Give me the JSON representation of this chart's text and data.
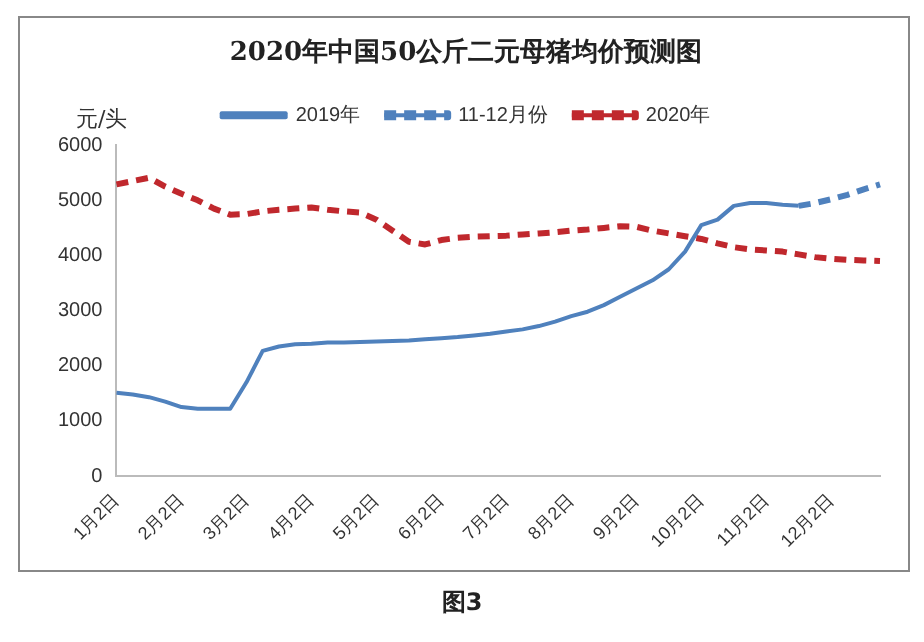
{
  "chart_data": {
    "type": "line",
    "title": "2020年中国50公斤二元母猪均价预测图",
    "ylabel": "元/头",
    "annotations": [
      "图3"
    ],
    "categories": [
      "1月2日",
      null,
      null,
      null,
      "2月2日",
      null,
      null,
      null,
      "3月2日",
      null,
      null,
      null,
      "4月2日",
      null,
      null,
      null,
      "5月2日",
      null,
      null,
      null,
      "6月2日",
      null,
      null,
      null,
      "7月2日",
      null,
      null,
      null,
      "8月2日",
      null,
      null,
      null,
      "9月2日",
      null,
      null,
      null,
      "10月2日",
      null,
      null,
      null,
      "11月2日",
      null,
      null,
      null,
      "12月2日",
      null,
      null,
      null
    ],
    "ylim": [
      0,
      6000
    ],
    "yticks": [
      0,
      1000,
      2000,
      3000,
      4000,
      5000,
      6000
    ],
    "grid": false,
    "legend": "top",
    "marker": "none",
    "series": [
      {
        "name": "2019年",
        "color": "#4f81bd",
        "line_style": "solid",
        "values": [
          1510,
          1480,
          1430,
          1350,
          1250,
          1220,
          1220,
          1220,
          1700,
          2270,
          2350,
          2390,
          2400,
          2420,
          2420,
          2430,
          2440,
          2450,
          2460,
          2480,
          2500,
          2520,
          2550,
          2580,
          2620,
          2660,
          2720,
          2800,
          2900,
          2980,
          3100,
          3250,
          3400,
          3550,
          3750,
          4070,
          4550,
          4650,
          4900,
          4950,
          4950,
          4920,
          4900,
          null,
          null,
          null,
          null,
          null
        ]
      },
      {
        "name": "11-12月份",
        "color": "#4f81bd",
        "line_style": "dashed",
        "values": [
          null,
          null,
          null,
          null,
          null,
          null,
          null,
          null,
          null,
          null,
          null,
          null,
          null,
          null,
          null,
          null,
          null,
          null,
          null,
          null,
          null,
          null,
          null,
          null,
          null,
          null,
          null,
          null,
          null,
          null,
          null,
          null,
          null,
          null,
          null,
          null,
          null,
          null,
          null,
          null,
          null,
          null,
          4900,
          4950,
          5020,
          5100,
          5200,
          5290
        ]
      },
      {
        "name": "2020年",
        "color": "#c0282d",
        "line_style": "dashed",
        "values": [
          5290,
          5350,
          5410,
          5250,
          5120,
          5000,
          4850,
          4740,
          4750,
          4800,
          4830,
          4850,
          4870,
          4830,
          4800,
          4780,
          4650,
          4450,
          4250,
          4200,
          4280,
          4320,
          4340,
          4350,
          4360,
          4380,
          4400,
          4420,
          4450,
          4470,
          4500,
          4530,
          4520,
          4450,
          4400,
          4350,
          4300,
          4220,
          4150,
          4110,
          4090,
          4070,
          4020,
          3970,
          3940,
          3920,
          3910,
          3900
        ]
      }
    ]
  }
}
